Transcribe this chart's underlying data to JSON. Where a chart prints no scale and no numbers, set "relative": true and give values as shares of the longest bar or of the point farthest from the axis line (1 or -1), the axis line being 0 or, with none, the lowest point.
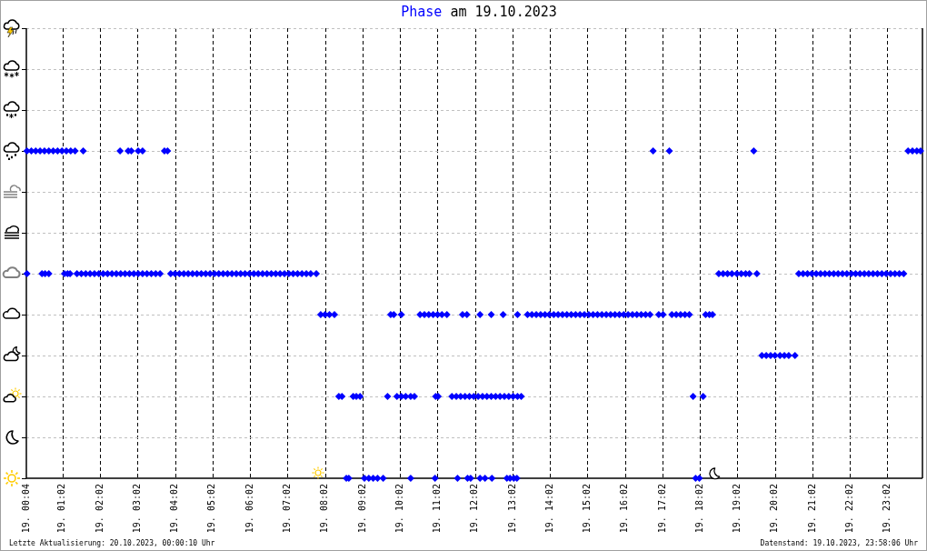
{
  "chart_data": {
    "type": "scatter",
    "title": "Phase am 19.10.2023",
    "relative": true,
    "color": "#0000ff",
    "marker": "diamond",
    "grid": true,
    "x": [
      "2023-10-19T00:05",
      "2023-10-19T00:12",
      "2023-10-19T00:19",
      "2023-10-19T00:26",
      "2023-10-19T00:33",
      "2023-10-19T00:40",
      "2023-10-19T00:47",
      "2023-10-19T00:54",
      "2023-10-19T01:01",
      "2023-10-19T01:08",
      "2023-10-19T01:15",
      "2023-10-19T01:22",
      "2023-10-19T01:35",
      "2023-10-19T02:34",
      "2023-10-19T02:47",
      "2023-10-19T02:52",
      "2023-10-19T03:03",
      "2023-10-19T03:10",
      "2023-10-19T03:45",
      "2023-10-19T03:50",
      "2023-10-19T16:47",
      "2023-10-19T17:13",
      "2023-10-19T19:28",
      "2023-10-19T23:35",
      "2023-10-19T23:42",
      "2023-10-19T23:49",
      "2023-10-19T23:55",
      "2023-10-19T00:05",
      "2023-10-19T00:29",
      "2023-10-19T00:34",
      "2023-10-19T00:40",
      "2023-10-19T01:05",
      "2023-10-19T01:10",
      "2023-10-19T01:14",
      "2023-10-19T01:25",
      "2023-10-19T01:32",
      "2023-10-19T01:39",
      "2023-10-19T01:46",
      "2023-10-19T01:53",
      "2023-10-19T02:00",
      "2023-10-19T02:07",
      "2023-10-19T02:14",
      "2023-10-19T02:21",
      "2023-10-19T02:28",
      "2023-10-19T02:35",
      "2023-10-19T02:42",
      "2023-10-19T02:49",
      "2023-10-19T02:56",
      "2023-10-19T03:03",
      "2023-10-19T03:10",
      "2023-10-19T03:17",
      "2023-10-19T03:24",
      "2023-10-19T03:31",
      "2023-10-19T03:38",
      "2023-10-19T03:55",
      "2023-10-19T04:02",
      "2023-10-19T04:09",
      "2023-10-19T04:16",
      "2023-10-19T04:23",
      "2023-10-19T04:30",
      "2023-10-19T04:37",
      "2023-10-19T04:44",
      "2023-10-19T04:51",
      "2023-10-19T04:58",
      "2023-10-19T05:05",
      "2023-10-19T05:12",
      "2023-10-19T05:19",
      "2023-10-19T05:26",
      "2023-10-19T05:33",
      "2023-10-19T05:40",
      "2023-10-19T05:47",
      "2023-10-19T05:54",
      "2023-10-19T06:01",
      "2023-10-19T06:08",
      "2023-10-19T06:15",
      "2023-10-19T06:22",
      "2023-10-19T06:29",
      "2023-10-19T06:36",
      "2023-10-19T06:43",
      "2023-10-19T06:50",
      "2023-10-19T06:57",
      "2023-10-19T07:04",
      "2023-10-19T07:11",
      "2023-10-19T07:18",
      "2023-10-19T07:25",
      "2023-10-19T07:32",
      "2023-10-19T07:39",
      "2023-10-19T07:48",
      "2023-10-19T18:32",
      "2023-10-19T18:39",
      "2023-10-19T18:46",
      "2023-10-19T18:53",
      "2023-10-19T19:01",
      "2023-10-19T19:08",
      "2023-10-19T19:15",
      "2023-10-19T19:21",
      "2023-10-19T19:33",
      "2023-10-19T20:40",
      "2023-10-19T20:47",
      "2023-10-19T20:54",
      "2023-10-19T21:01",
      "2023-10-19T21:08",
      "2023-10-19T21:15",
      "2023-10-19T21:22",
      "2023-10-19T21:29",
      "2023-10-19T21:36",
      "2023-10-19T21:43",
      "2023-10-19T21:50",
      "2023-10-19T21:57",
      "2023-10-19T22:04",
      "2023-10-19T22:11",
      "2023-10-19T22:18",
      "2023-10-19T22:25",
      "2023-10-19T22:32",
      "2023-10-19T22:39",
      "2023-10-19T22:46",
      "2023-10-19T22:53",
      "2023-10-19T23:00",
      "2023-10-19T23:07",
      "2023-10-19T23:14",
      "2023-10-19T23:21",
      "2023-10-19T23:28",
      "2023-10-19T07:55",
      "2023-10-19T08:02",
      "2023-10-19T08:09",
      "2023-10-19T08:17",
      "2023-10-19T09:47",
      "2023-10-19T09:52",
      "2023-10-19T10:04",
      "2023-10-19T10:34",
      "2023-10-19T10:41",
      "2023-10-19T10:48",
      "2023-10-19T10:55",
      "2023-10-19T11:02",
      "2023-10-19T11:09",
      "2023-10-19T11:17",
      "2023-10-19T11:42",
      "2023-10-19T11:49",
      "2023-10-19T12:10",
      "2023-10-19T12:28",
      "2023-10-19T12:47",
      "2023-10-19T13:10",
      "2023-10-19T13:26",
      "2023-10-19T13:33",
      "2023-10-19T13:40",
      "2023-10-19T13:47",
      "2023-10-19T13:54",
      "2023-10-19T14:01",
      "2023-10-19T14:08",
      "2023-10-19T14:15",
      "2023-10-19T14:22",
      "2023-10-19T14:29",
      "2023-10-19T14:36",
      "2023-10-19T14:43",
      "2023-10-19T14:50",
      "2023-10-19T14:57",
      "2023-10-19T15:04",
      "2023-10-19T15:11",
      "2023-10-19T15:18",
      "2023-10-19T15:25",
      "2023-10-19T15:32",
      "2023-10-19T15:39",
      "2023-10-19T15:46",
      "2023-10-19T15:53",
      "2023-10-19T16:00",
      "2023-10-19T16:07",
      "2023-10-19T16:14",
      "2023-10-19T16:21",
      "2023-10-19T16:28",
      "2023-10-19T16:35",
      "2023-10-19T16:42",
      "2023-10-19T16:56",
      "2023-10-19T17:03",
      "2023-10-19T17:17",
      "2023-10-19T17:24",
      "2023-10-19T17:31",
      "2023-10-19T17:38",
      "2023-10-19T17:45",
      "2023-10-19T18:11",
      "2023-10-19T18:17",
      "2023-10-19T18:22",
      "2023-10-19T19:41",
      "2023-10-19T19:48",
      "2023-10-19T19:55",
      "2023-10-19T20:02",
      "2023-10-19T20:10",
      "2023-10-19T20:17",
      "2023-10-19T20:24",
      "2023-10-19T20:34",
      "2023-10-19T08:24",
      "2023-10-19T08:29",
      "2023-10-19T08:47",
      "2023-10-19T08:52",
      "2023-10-19T08:58",
      "2023-10-19T09:42",
      "2023-10-19T09:57",
      "2023-10-19T10:04",
      "2023-10-19T10:11",
      "2023-10-19T10:19",
      "2023-10-19T10:25",
      "2023-10-19T10:59",
      "2023-10-19T11:03",
      "2023-10-19T11:25",
      "2023-10-19T11:32",
      "2023-10-19T11:39",
      "2023-10-19T11:46",
      "2023-10-19T11:53",
      "2023-10-19T12:00",
      "2023-10-19T12:07",
      "2023-10-19T12:14",
      "2023-10-19T12:21",
      "2023-10-19T12:28",
      "2023-10-19T12:35",
      "2023-10-19T12:42",
      "2023-10-19T12:49",
      "2023-10-19T12:56",
      "2023-10-19T13:03",
      "2023-10-19T13:10",
      "2023-10-19T13:16",
      "2023-10-19T17:51",
      "2023-10-19T18:07",
      "2023-10-19T08:36",
      "2023-10-19T08:40",
      "2023-10-19T09:05",
      "2023-10-19T09:12",
      "2023-10-19T09:19",
      "2023-10-19T09:26",
      "2023-10-19T09:35",
      "2023-10-19T10:19",
      "2023-10-19T10:58",
      "2023-10-19T11:34",
      "2023-10-19T11:50",
      "2023-10-19T11:55",
      "2023-10-19T12:10",
      "2023-10-19T12:18",
      "2023-10-19T12:29",
      "2023-10-19T12:53",
      "2023-10-19T12:58",
      "2023-10-19T13:04",
      "2023-10-19T13:09",
      "2023-10-19T17:55",
      "2023-10-19T18:01"
    ],
    "values": [
      1,
      1,
      1,
      1,
      1,
      1,
      1,
      1,
      1,
      1,
      1,
      1,
      1,
      1,
      1,
      1,
      1,
      1,
      1,
      1,
      1,
      1,
      1,
      1,
      1,
      1,
      1,
      0.625,
      0.625,
      0.625,
      0.625,
      0.625,
      0.625,
      0.625,
      0.625,
      0.625,
      0.625,
      0.625,
      0.625,
      0.625,
      0.625,
      0.625,
      0.625,
      0.625,
      0.625,
      0.625,
      0.625,
      0.625,
      0.625,
      0.625,
      0.625,
      0.625,
      0.625,
      0.625,
      0.625,
      0.625,
      0.625,
      0.625,
      0.625,
      0.625,
      0.625,
      0.625,
      0.625,
      0.625,
      0.625,
      0.625,
      0.625,
      0.625,
      0.625,
      0.625,
      0.625,
      0.625,
      0.625,
      0.625,
      0.625,
      0.625,
      0.625,
      0.625,
      0.625,
      0.625,
      0.625,
      0.625,
      0.625,
      0.625,
      0.625,
      0.625,
      0.625,
      0.625,
      0.625,
      0.625,
      0.625,
      0.625,
      0.625,
      0.625,
      0.625,
      0.625,
      0.625,
      0.625,
      0.625,
      0.625,
      0.625,
      0.625,
      0.625,
      0.625,
      0.625,
      0.625,
      0.625,
      0.625,
      0.625,
      0.625,
      0.625,
      0.625,
      0.625,
      0.625,
      0.625,
      0.625,
      0.625,
      0.625,
      0.625,
      0.625,
      0.625,
      0.625,
      0.5,
      0.5,
      0.5,
      0.5,
      0.5,
      0.5,
      0.5,
      0.5,
      0.5,
      0.5,
      0.5,
      0.5,
      0.5,
      0.5,
      0.5,
      0.5,
      0.5,
      0.5,
      0.5,
      0.5,
      0.5,
      0.5,
      0.5,
      0.5,
      0.5,
      0.5,
      0.5,
      0.5,
      0.5,
      0.5,
      0.5,
      0.5,
      0.5,
      0.5,
      0.5,
      0.5,
      0.5,
      0.5,
      0.5,
      0.5,
      0.5,
      0.5,
      0.5,
      0.5,
      0.5,
      0.5,
      0.5,
      0.5,
      0.5,
      0.5,
      0.5,
      0.5,
      0.5,
      0.5,
      0.5,
      0.5,
      0.5,
      0.5,
      0.5,
      0.375,
      0.375,
      0.375,
      0.375,
      0.375,
      0.375,
      0.375,
      0.375,
      0.25,
      0.25,
      0.25,
      0.25,
      0.25,
      0.25,
      0.25,
      0.25,
      0.25,
      0.25,
      0.25,
      0.25,
      0.25,
      0.25,
      0.25,
      0.25,
      0.25,
      0.25,
      0.25,
      0.25,
      0.25,
      0.25,
      0.25,
      0.25,
      0.25,
      0.25,
      0.25,
      0.25,
      0.25,
      0.25,
      0.25,
      0.25,
      0,
      0,
      0,
      0,
      0,
      0,
      0,
      0,
      0,
      0,
      0,
      0,
      0,
      0,
      0,
      0,
      0,
      0,
      0,
      0,
      0
    ],
    "xlim": [
      "2023-10-19T00:04",
      "2023-10-19T23:58"
    ],
    "xticks": [
      {
        "value": "2023-10-19T00:04",
        "label": "19. 00:04"
      },
      {
        "value": "2023-10-19T01:02",
        "label": "19. 01:02"
      },
      {
        "value": "2023-10-19T02:02",
        "label": "19. 02:02"
      },
      {
        "value": "2023-10-19T03:02",
        "label": "19. 03:02"
      },
      {
        "value": "2023-10-19T04:02",
        "label": "19. 04:02"
      },
      {
        "value": "2023-10-19T05:02",
        "label": "19. 05:02"
      },
      {
        "value": "2023-10-19T06:02",
        "label": "19. 06:02"
      },
      {
        "value": "2023-10-19T07:02",
        "label": "19. 07:02"
      },
      {
        "value": "2023-10-19T08:02",
        "label": "19. 08:02"
      },
      {
        "value": "2023-10-19T09:02",
        "label": "19. 09:02"
      },
      {
        "value": "2023-10-19T10:02",
        "label": "19. 10:02"
      },
      {
        "value": "2023-10-19T11:02",
        "label": "19. 11:02"
      },
      {
        "value": "2023-10-19T12:02",
        "label": "19. 12:02"
      },
      {
        "value": "2023-10-19T13:02",
        "label": "19. 13:02"
      },
      {
        "value": "2023-10-19T14:02",
        "label": "19. 14:02"
      },
      {
        "value": "2023-10-19T15:02",
        "label": "19. 15:02"
      },
      {
        "value": "2023-10-19T16:02",
        "label": "19. 16:02"
      },
      {
        "value": "2023-10-19T17:02",
        "label": "19. 17:02"
      },
      {
        "value": "2023-10-19T18:02",
        "label": "19. 18:02"
      },
      {
        "value": "2023-10-19T19:02",
        "label": "19. 19:02"
      },
      {
        "value": "2023-10-19T20:02",
        "label": "19. 20:02"
      },
      {
        "value": "2023-10-19T21:02",
        "label": "19. 21:02"
      },
      {
        "value": "2023-10-19T22:02",
        "label": "19. 22:02"
      },
      {
        "value": "2023-10-19T23:02",
        "label": "19. 23:02"
      }
    ],
    "annotations": [
      "Letzte Aktualisierung: 20.10.2023, 00:00:10 Uhr",
      "Datenstand: 19.10.2023, 23:58:06 Uhr"
    ]
  }
}
